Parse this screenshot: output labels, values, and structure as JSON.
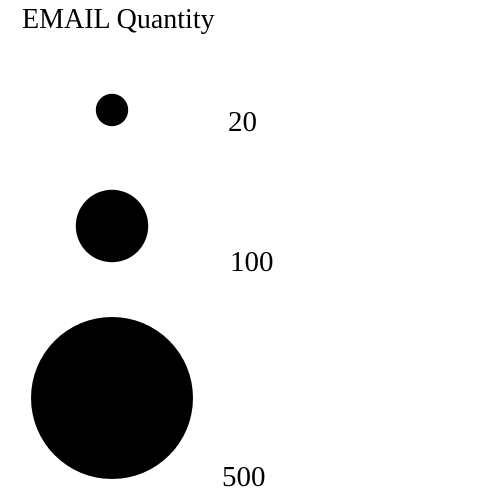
{
  "chart_data": {
    "type": "bubble-legend",
    "title": "EMAIL Quantity",
    "color": "#000000",
    "size_scale": "area",
    "entries": [
      {
        "label": "20",
        "value": 20
      },
      {
        "label": "100",
        "value": 100
      },
      {
        "label": "500",
        "value": 500
      }
    ]
  }
}
